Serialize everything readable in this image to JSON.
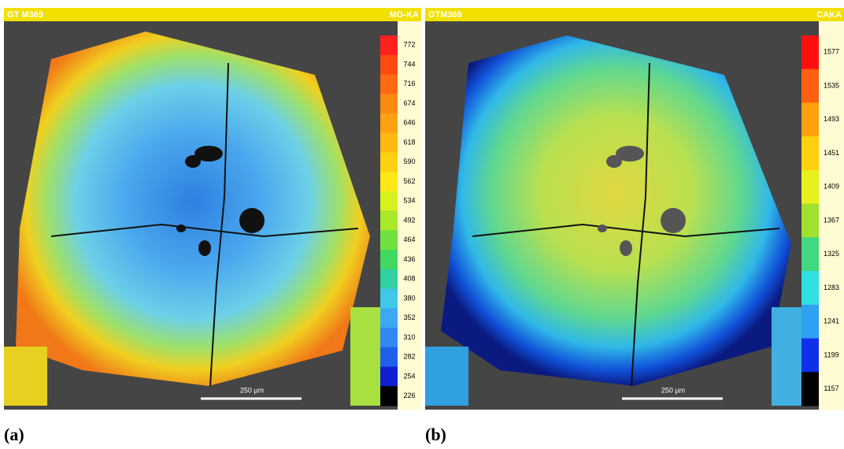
{
  "panels": [
    {
      "caption": "(a)",
      "title": "GT M369",
      "element": "MG-KA",
      "scale_labels": [
        772,
        744,
        716,
        674,
        646,
        618,
        590,
        562,
        534,
        492,
        464,
        436,
        408,
        380,
        352,
        310,
        282,
        254,
        226
      ],
      "scale_bar": "250 µm"
    },
    {
      "caption": "(b)",
      "title": "GTM369",
      "element": "CAKA",
      "scale_labels": [
        1577,
        1535,
        1493,
        1451,
        1409,
        1367,
        1325,
        1283,
        1241,
        1199,
        1157
      ],
      "scale_bar": "250 µm"
    }
  ]
}
